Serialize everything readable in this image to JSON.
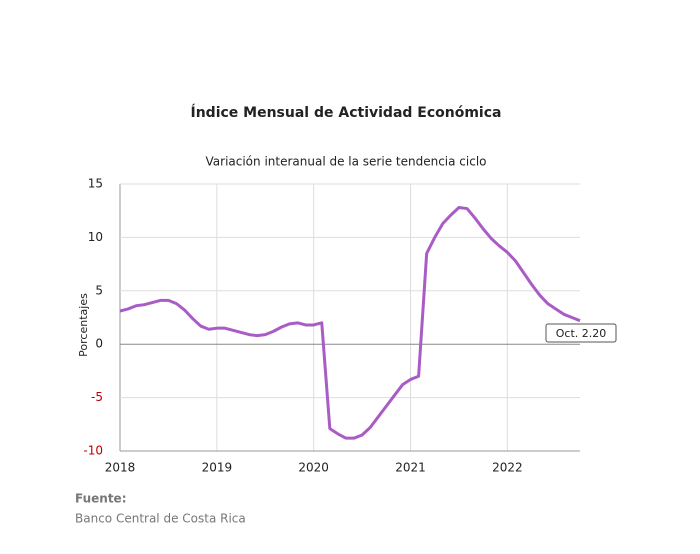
{
  "chart_data": {
    "type": "line",
    "title": "Índice Mensual de  Actividad Económica",
    "subtitle": "Variación interanual de la serie tendencia ciclo",
    "y_label": "Porcentajes",
    "categories": [
      "2018",
      null,
      null,
      null,
      null,
      null,
      null,
      null,
      null,
      null,
      null,
      null,
      "2019",
      null,
      null,
      null,
      null,
      null,
      null,
      null,
      null,
      null,
      null,
      null,
      "2020",
      null,
      null,
      null,
      null,
      null,
      null,
      null,
      null,
      null,
      null,
      null,
      "2021",
      null,
      null,
      null,
      null,
      null,
      null,
      null,
      null,
      null,
      null,
      null,
      "2022",
      null,
      null,
      null,
      null,
      null,
      null,
      null,
      null,
      null
    ],
    "series": [
      {
        "name": "Variación interanual",
        "color": "#a95cc6",
        "values": [
          3.1,
          3.3,
          3.6,
          3.7,
          3.9,
          4.1,
          4.1,
          3.8,
          3.2,
          2.4,
          1.7,
          1.4,
          1.5,
          1.5,
          1.3,
          1.1,
          0.9,
          0.8,
          0.9,
          1.2,
          1.6,
          1.9,
          2.0,
          1.8,
          1.8,
          2.0,
          -7.9,
          -8.4,
          -8.8,
          -8.8,
          -8.5,
          -7.8,
          -6.8,
          -5.8,
          -4.8,
          -3.8,
          -3.3,
          -3.0,
          8.5,
          10.0,
          11.3,
          12.1,
          12.8,
          12.7,
          11.8,
          10.8,
          9.9,
          9.2,
          8.6,
          7.8,
          6.7,
          5.6,
          4.6,
          3.8,
          3.3,
          2.8,
          2.5,
          2.2
        ]
      }
    ],
    "ylim": [
      -10,
      15
    ],
    "yticks": [
      -10,
      -5,
      0,
      5,
      10,
      15
    ],
    "negative_tick_color": "#c00000",
    "grid": true,
    "annotation": "Oct. 2.20",
    "source_label": "Fuente:",
    "source": "Banco Central de Costa Rica"
  }
}
